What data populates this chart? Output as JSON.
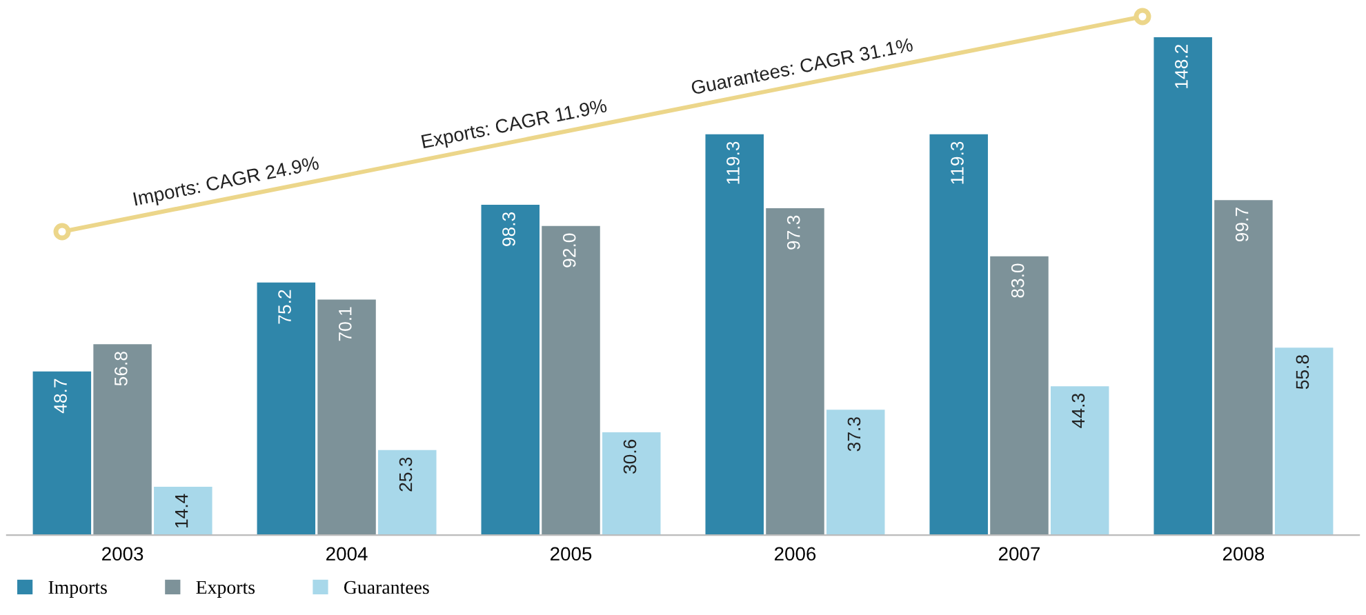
{
  "chart_data": {
    "type": "bar",
    "categories": [
      "2003",
      "2004",
      "2005",
      "2006",
      "2007",
      "2008"
    ],
    "series": [
      {
        "name": "Imports",
        "color": "#2f86aa",
        "values": [
          48.7,
          75.2,
          98.3,
          119.3,
          119.3,
          148.2
        ],
        "value_labels": [
          "48.7",
          "75.2",
          "98.3",
          "119.3",
          "119.3",
          "148.2"
        ]
      },
      {
        "name": "Exports",
        "color": "#7d9299",
        "values": [
          56.8,
          70.1,
          92.0,
          97.3,
          83.0,
          99.7
        ],
        "value_labels": [
          "56.8",
          "70.1",
          "92.0",
          "97.3",
          "83.0",
          "99.7"
        ]
      },
      {
        "name": "Guarantees",
        "color": "#a8d8ea",
        "values": [
          14.4,
          25.3,
          30.6,
          37.3,
          44.3,
          55.8
        ],
        "value_labels": [
          "14.4",
          "25.3",
          "30.6",
          "37.3",
          "44.3",
          "55.8"
        ]
      }
    ],
    "legend": "bottom left",
    "grid": false,
    "annotations": [
      "Imports: CAGR 24.9%",
      "Exports: CAGR 11.9%",
      "Guarantees: CAGR 31.1%"
    ]
  }
}
